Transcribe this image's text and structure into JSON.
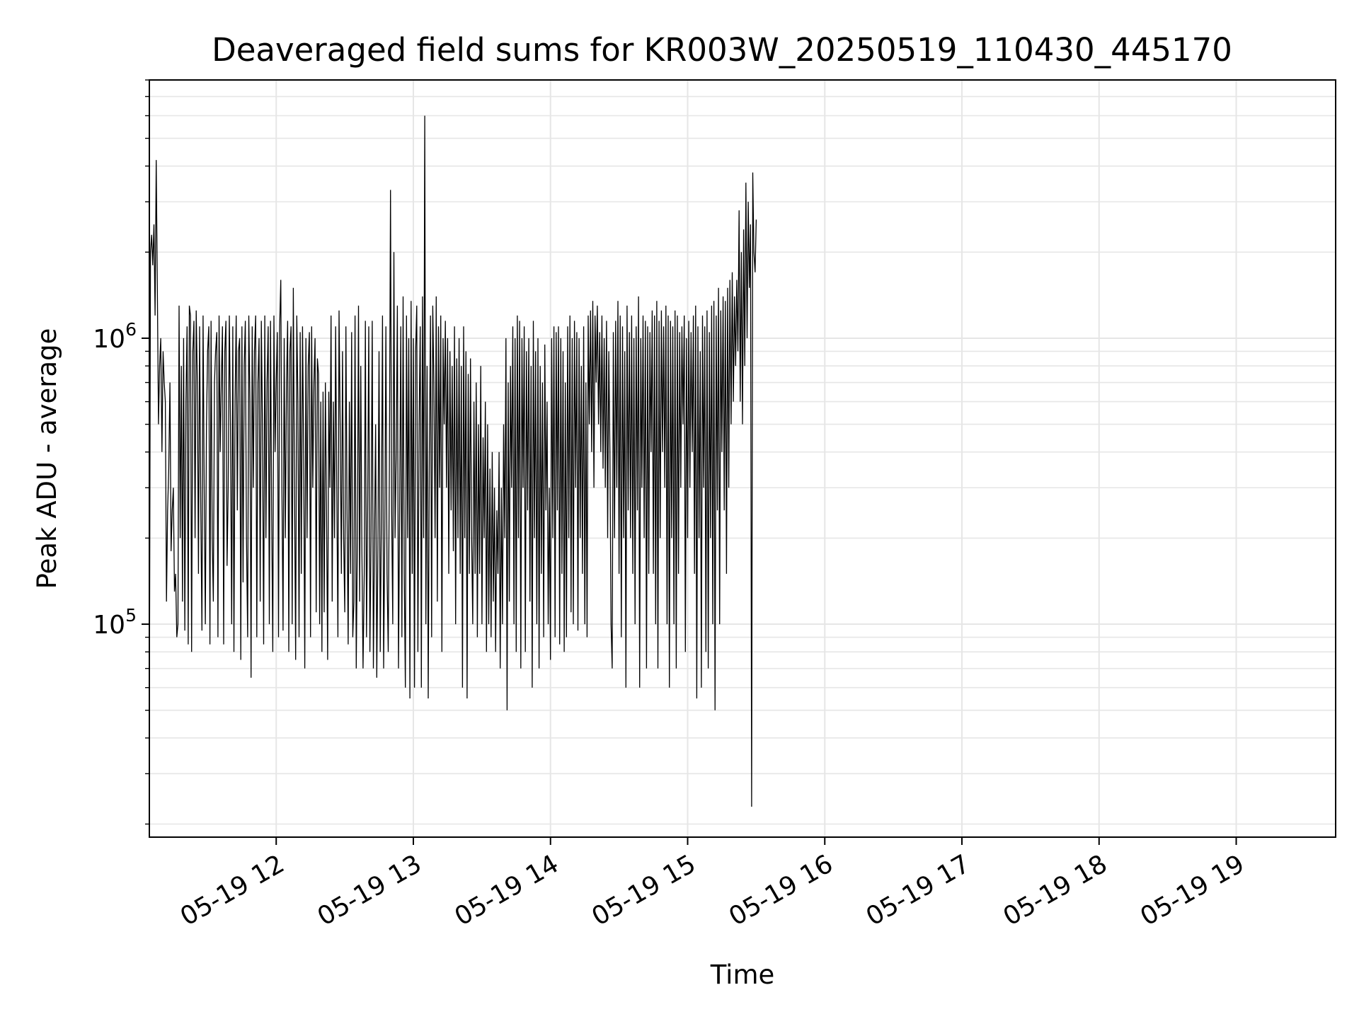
{
  "chart_data": {
    "type": "line",
    "title": "Deaveraged field sums for KR003W_20250519_110430_445170",
    "xlabel": "Time",
    "ylabel": "Peak ADU - average",
    "yscale": "log",
    "grid": true,
    "xlim": [
      "2025-05-19 11:04:30",
      "2025-05-19 19:43:30"
    ],
    "ylim": [
      18000,
      8000000
    ],
    "x_ticks": [
      "05-19 12",
      "05-19 13",
      "05-19 14",
      "05-19 15",
      "05-19 16",
      "05-19 17",
      "05-19 18",
      "05-19 19"
    ],
    "y_ticks": [
      "10^5",
      "10^6"
    ],
    "line_color": "#000000",
    "series": [
      {
        "x_start": "2025-05-19 11:04:30",
        "x_step_seconds": 30,
        "values": [
          40000,
          2000000,
          2300000,
          1800000,
          2500000,
          1200000,
          4200000,
          1500000,
          500000,
          800000,
          1000000,
          400000,
          900000,
          700000,
          600000,
          120000,
          250000,
          350000,
          700000,
          180000,
          250000,
          300000,
          130000,
          150000,
          90000,
          100000,
          1300000,
          200000,
          800000,
          120000,
          1000000,
          95000,
          600000,
          1100000,
          85000,
          1300000,
          1200000,
          80000,
          900000,
          1150000,
          200000,
          1250000,
          700000,
          150000,
          1100000,
          250000,
          95000,
          1200000,
          300000,
          100000,
          500000,
          900000,
          1100000,
          85000,
          1150000,
          200000,
          120000,
          700000,
          900000,
          1050000,
          90000,
          1200000,
          400000,
          700000,
          1100000,
          85000,
          900000,
          1150000,
          160000,
          300000,
          1200000,
          500000,
          100000,
          1100000,
          80000,
          600000,
          1200000,
          250000,
          900000,
          1000000,
          75000,
          1100000,
          140000,
          800000,
          1150000,
          200000,
          90000,
          1200000,
          600000,
          65000,
          1100000,
          300000,
          900000,
          1200000,
          90000,
          700000,
          1000000,
          120000,
          1150000,
          500000,
          85000,
          1200000,
          200000,
          700000,
          1100000,
          100000,
          1150000,
          250000,
          80000,
          1200000,
          400000,
          700000,
          1050000,
          90000,
          1100000,
          1600000,
          300000,
          95000,
          1000000,
          200000,
          700000,
          1150000,
          80000,
          900000,
          1100000,
          100000,
          1500000,
          300000,
          75000,
          1200000,
          600000,
          90000,
          1050000,
          150000,
          1100000,
          400000,
          70000,
          1000000,
          200000,
          800000,
          1050000,
          90000,
          1100000,
          300000,
          700000,
          1000000,
          110000,
          850000,
          750000,
          100000,
          600000,
          80000,
          650000,
          110000,
          700000,
          250000,
          75000,
          650000,
          300000,
          1200000,
          120000,
          600000,
          200000,
          1100000,
          300000,
          90000,
          1250000,
          500000,
          150000,
          900000,
          200000,
          110000,
          1100000,
          250000,
          85000,
          600000,
          150000,
          1050000,
          90000,
          120000,
          1200000,
          70000,
          200000,
          1300000,
          120000,
          800000,
          180000,
          70000,
          150000,
          1150000,
          90000,
          250000,
          1100000,
          80000,
          200000,
          1150000,
          70000,
          200000,
          500000,
          65000,
          180000,
          900000,
          80000,
          230000,
          1200000,
          70000,
          200000,
          1100000,
          150000,
          80000,
          350000,
          3300000,
          250000,
          100000,
          2000000,
          200000,
          400000,
          1300000,
          70000,
          250000,
          1100000,
          90000,
          1400000,
          150000,
          60000,
          1200000,
          200000,
          1000000,
          55000,
          1350000,
          150000,
          1000000,
          60000,
          900000,
          1300000,
          80000,
          500000,
          1100000,
          60000,
          1400000,
          200000,
          6000000,
          100000,
          800000,
          55000,
          400000,
          1200000,
          90000,
          1300000,
          700000,
          200000,
          1400000,
          120000,
          1100000,
          300000,
          1200000,
          80000,
          1000000,
          500000,
          1150000,
          300000,
          1000000,
          150000,
          900000,
          250000,
          800000,
          180000,
          1100000,
          100000,
          850000,
          200000,
          1000000,
          150000,
          800000,
          60000,
          1100000,
          200000,
          900000,
          55000,
          750000,
          150000,
          850000,
          200000,
          100000,
          600000,
          150000,
          700000,
          90000,
          500000,
          150000,
          800000,
          100000,
          450000,
          200000,
          600000,
          80000,
          500000,
          100000,
          350000,
          90000,
          400000,
          120000,
          300000,
          80000,
          250000,
          150000,
          400000,
          70000,
          300000,
          100000,
          500000,
          200000,
          1000000,
          50000,
          700000,
          120000,
          800000,
          300000,
          1100000,
          100000,
          1000000,
          80000,
          1200000,
          200000,
          1150000,
          70000,
          1000000,
          300000,
          1100000,
          80000,
          900000,
          250000,
          1000000,
          120000,
          800000,
          60000,
          1150000,
          200000,
          900000,
          100000,
          1000000,
          70000,
          800000,
          150000,
          700000,
          90000,
          950000,
          250000,
          600000,
          100000,
          300000,
          75000,
          1000000,
          200000,
          1100000,
          90000,
          1050000,
          250000,
          1100000,
          85000,
          1000000,
          150000,
          900000,
          80000,
          700000,
          90000,
          1100000,
          200000,
          1200000,
          110000,
          1000000,
          100000,
          1150000,
          300000,
          1050000,
          95000,
          1000000,
          200000,
          800000,
          150000,
          1100000,
          100000,
          700000,
          90000,
          1200000,
          500000,
          1250000,
          400000,
          1350000,
          300000,
          1200000,
          700000,
          1300000,
          500000,
          1050000,
          400000,
          1200000,
          350000,
          1000000,
          300000,
          1150000,
          200000,
          900000,
          400000,
          100000,
          70000,
          1050000,
          200000,
          1150000,
          300000,
          1350000,
          150000,
          1200000,
          90000,
          1100000,
          200000,
          900000,
          60000,
          1300000,
          250000,
          1050000,
          200000,
          1200000,
          150000,
          1000000,
          100000,
          1100000,
          250000,
          1400000,
          60000,
          1000000,
          300000,
          1200000,
          200000,
          1150000,
          70000,
          1100000,
          150000,
          1050000,
          400000,
          1250000,
          150000,
          1200000,
          100000,
          1350000,
          70000,
          1150000,
          200000,
          1250000,
          400000,
          1100000,
          300000,
          1300000,
          100000,
          1200000,
          60000,
          1150000,
          200000,
          1100000,
          100000,
          1250000,
          70000,
          1200000,
          150000,
          1050000,
          300000,
          1100000,
          500000,
          1200000,
          80000,
          1000000,
          200000,
          1150000,
          300000,
          1050000,
          400000,
          1200000,
          150000,
          1300000,
          55000,
          1100000,
          200000,
          900000,
          60000,
          1200000,
          300000,
          1100000,
          80000,
          1250000,
          70000,
          1050000,
          200000,
          1300000,
          100000,
          1350000,
          50000,
          1200000,
          250000,
          1500000,
          100000,
          1250000,
          400000,
          1400000,
          250000,
          1350000,
          150000,
          1500000,
          300000,
          1600000,
          500000,
          1700000,
          600000,
          1400000,
          800000,
          1600000,
          900000,
          2800000,
          600000,
          2000000,
          500000,
          2400000,
          800000,
          3500000,
          1000000,
          3000000,
          1500000,
          2500000,
          23000,
          3800000,
          2000000,
          1700000,
          2600000
        ]
      }
    ]
  }
}
